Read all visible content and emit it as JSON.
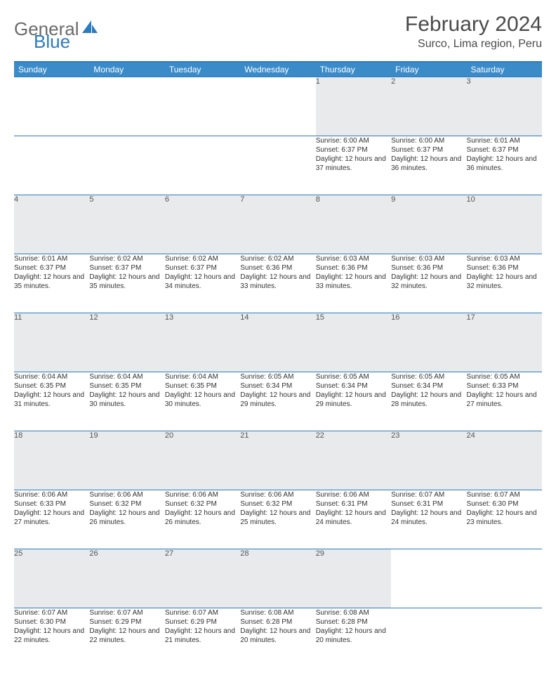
{
  "logo": {
    "part1": "General",
    "part2": "Blue"
  },
  "title": "February 2024",
  "location": "Surco, Lima region, Peru",
  "colors": {
    "header_bg": "#3b8bc9",
    "border": "#2b7bbf",
    "daynum_bg": "#e9eaec",
    "text": "#333333",
    "title_text": "#4a4a4a",
    "logo_gray": "#6b6b6b",
    "logo_blue": "#2b7bbf"
  },
  "weekdays": [
    "Sunday",
    "Monday",
    "Tuesday",
    "Wednesday",
    "Thursday",
    "Friday",
    "Saturday"
  ],
  "weeks": [
    [
      null,
      null,
      null,
      null,
      {
        "n": "1",
        "sr": "6:00 AM",
        "ss": "6:37 PM",
        "dl": "12 hours and 37 minutes."
      },
      {
        "n": "2",
        "sr": "6:00 AM",
        "ss": "6:37 PM",
        "dl": "12 hours and 36 minutes."
      },
      {
        "n": "3",
        "sr": "6:01 AM",
        "ss": "6:37 PM",
        "dl": "12 hours and 36 minutes."
      }
    ],
    [
      {
        "n": "4",
        "sr": "6:01 AM",
        "ss": "6:37 PM",
        "dl": "12 hours and 35 minutes."
      },
      {
        "n": "5",
        "sr": "6:02 AM",
        "ss": "6:37 PM",
        "dl": "12 hours and 35 minutes."
      },
      {
        "n": "6",
        "sr": "6:02 AM",
        "ss": "6:37 PM",
        "dl": "12 hours and 34 minutes."
      },
      {
        "n": "7",
        "sr": "6:02 AM",
        "ss": "6:36 PM",
        "dl": "12 hours and 33 minutes."
      },
      {
        "n": "8",
        "sr": "6:03 AM",
        "ss": "6:36 PM",
        "dl": "12 hours and 33 minutes."
      },
      {
        "n": "9",
        "sr": "6:03 AM",
        "ss": "6:36 PM",
        "dl": "12 hours and 32 minutes."
      },
      {
        "n": "10",
        "sr": "6:03 AM",
        "ss": "6:36 PM",
        "dl": "12 hours and 32 minutes."
      }
    ],
    [
      {
        "n": "11",
        "sr": "6:04 AM",
        "ss": "6:35 PM",
        "dl": "12 hours and 31 minutes."
      },
      {
        "n": "12",
        "sr": "6:04 AM",
        "ss": "6:35 PM",
        "dl": "12 hours and 30 minutes."
      },
      {
        "n": "13",
        "sr": "6:04 AM",
        "ss": "6:35 PM",
        "dl": "12 hours and 30 minutes."
      },
      {
        "n": "14",
        "sr": "6:05 AM",
        "ss": "6:34 PM",
        "dl": "12 hours and 29 minutes."
      },
      {
        "n": "15",
        "sr": "6:05 AM",
        "ss": "6:34 PM",
        "dl": "12 hours and 29 minutes."
      },
      {
        "n": "16",
        "sr": "6:05 AM",
        "ss": "6:34 PM",
        "dl": "12 hours and 28 minutes."
      },
      {
        "n": "17",
        "sr": "6:05 AM",
        "ss": "6:33 PM",
        "dl": "12 hours and 27 minutes."
      }
    ],
    [
      {
        "n": "18",
        "sr": "6:06 AM",
        "ss": "6:33 PM",
        "dl": "12 hours and 27 minutes."
      },
      {
        "n": "19",
        "sr": "6:06 AM",
        "ss": "6:32 PM",
        "dl": "12 hours and 26 minutes."
      },
      {
        "n": "20",
        "sr": "6:06 AM",
        "ss": "6:32 PM",
        "dl": "12 hours and 26 minutes."
      },
      {
        "n": "21",
        "sr": "6:06 AM",
        "ss": "6:32 PM",
        "dl": "12 hours and 25 minutes."
      },
      {
        "n": "22",
        "sr": "6:06 AM",
        "ss": "6:31 PM",
        "dl": "12 hours and 24 minutes."
      },
      {
        "n": "23",
        "sr": "6:07 AM",
        "ss": "6:31 PM",
        "dl": "12 hours and 24 minutes."
      },
      {
        "n": "24",
        "sr": "6:07 AM",
        "ss": "6:30 PM",
        "dl": "12 hours and 23 minutes."
      }
    ],
    [
      {
        "n": "25",
        "sr": "6:07 AM",
        "ss": "6:30 PM",
        "dl": "12 hours and 22 minutes."
      },
      {
        "n": "26",
        "sr": "6:07 AM",
        "ss": "6:29 PM",
        "dl": "12 hours and 22 minutes."
      },
      {
        "n": "27",
        "sr": "6:07 AM",
        "ss": "6:29 PM",
        "dl": "12 hours and 21 minutes."
      },
      {
        "n": "28",
        "sr": "6:08 AM",
        "ss": "6:28 PM",
        "dl": "12 hours and 20 minutes."
      },
      {
        "n": "29",
        "sr": "6:08 AM",
        "ss": "6:28 PM",
        "dl": "12 hours and 20 minutes."
      },
      null,
      null
    ]
  ],
  "labels": {
    "sunrise": "Sunrise:",
    "sunset": "Sunset:",
    "daylight": "Daylight:"
  }
}
